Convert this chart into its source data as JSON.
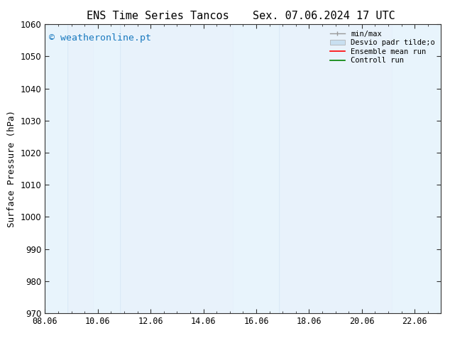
{
  "title_left": "ENS Time Series Tancos",
  "title_right": "Sex. 07.06.2024 17 UTC",
  "ylabel": "Surface Pressure (hPa)",
  "ylim": [
    970,
    1060
  ],
  "yticks": [
    970,
    980,
    990,
    1000,
    1010,
    1020,
    1030,
    1040,
    1050,
    1060
  ],
  "xlim": [
    0.0,
    15.0
  ],
  "xtick_labels": [
    "08.06",
    "10.06",
    "12.06",
    "14.06",
    "16.06",
    "18.06",
    "20.06",
    "22.06"
  ],
  "xtick_positions": [
    0.0,
    2.0,
    4.0,
    6.0,
    8.0,
    10.0,
    12.0,
    14.0
  ],
  "shaded_bands": [
    {
      "x_start": 0.0,
      "x_end": 0.85,
      "color": "#daeaf7"
    },
    {
      "x_start": 1.85,
      "x_end": 2.85,
      "color": "#daeaf7"
    },
    {
      "x_start": 7.15,
      "x_end": 8.85,
      "color": "#daeaf7"
    },
    {
      "x_start": 13.15,
      "x_end": 15.0,
      "color": "#daeaf7"
    }
  ],
  "plot_bg_color": "#e8f2fb",
  "fig_bg_color": "#ffffff",
  "watermark_text": "© weatheronline.pt",
  "watermark_color": "#1a7abf",
  "watermark_fontsize": 9.5,
  "legend_labels": [
    "min/max",
    "Desvio padr tilde;o",
    "Ensemble mean run",
    "Controll run"
  ],
  "legend_fontsize": 7.5,
  "title_fontsize": 11,
  "axis_label_fontsize": 9,
  "tick_fontsize": 8.5,
  "tick_color": "#333333",
  "spine_color": "#333333"
}
